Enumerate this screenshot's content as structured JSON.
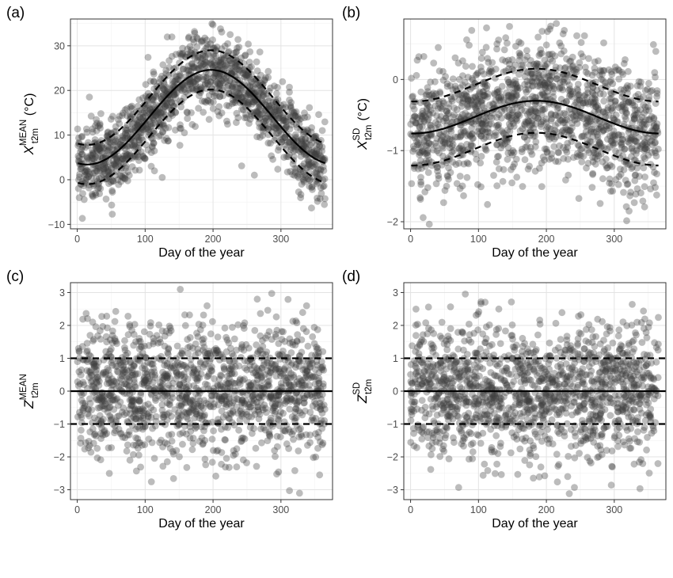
{
  "colors": {
    "points": "#404040",
    "curves": "#000000",
    "grid": "#ebebeb",
    "border": "#333333"
  },
  "chart_data": [
    {
      "tag": "(a)",
      "type": "scatter",
      "xlabel": "Day of the year",
      "ylabel": {
        "main": "X",
        "sup": "MEAN",
        "sub": "t2m",
        "unit": "(°C)"
      },
      "xlim": [
        -10,
        376
      ],
      "ylim": [
        -11,
        36
      ],
      "x_ticks": [
        0,
        100,
        200,
        300
      ],
      "y_ticks": [
        -10,
        0,
        10,
        20,
        30
      ],
      "y_tick_labels": [
        "−10",
        "0",
        "10",
        "20",
        "30"
      ],
      "point_cloud": {
        "n": 1460,
        "opacity": 0.35,
        "pattern": "seasonal",
        "mean": [
          14.0,
          10.6,
          197
        ],
        "sd": [
          4.4,
          0,
          0
        ]
      },
      "lines": [
        {
          "style": "solid",
          "form": "seasonal",
          "mean": 14.0,
          "amp": 10.6,
          "peak_day": 197,
          "offset": 0
        },
        {
          "style": "dashed",
          "form": "seasonal",
          "mean": 14.0,
          "amp": 10.6,
          "peak_day": 197,
          "offset": 4.4
        },
        {
          "style": "dashed",
          "form": "seasonal",
          "mean": 14.0,
          "amp": 10.6,
          "peak_day": 197,
          "offset": -4.4
        }
      ]
    },
    {
      "tag": "(b)",
      "type": "scatter",
      "xlabel": "Day of the year",
      "ylabel": {
        "main": "X",
        "sup": "SD",
        "sub": "t2m",
        "unit": "(°C)"
      },
      "xlim": [
        -10,
        376
      ],
      "ylim": [
        -2.1,
        0.85
      ],
      "x_ticks": [
        0,
        100,
        200,
        300
      ],
      "y_ticks": [
        -2,
        -1,
        0
      ],
      "y_tick_labels": [
        "−2",
        "−1",
        "0"
      ],
      "point_cloud": {
        "n": 1460,
        "opacity": 0.35,
        "pattern": "seasonal",
        "mean": [
          -0.53,
          0.23,
          185
        ],
        "sd": [
          0.45,
          0,
          0
        ]
      },
      "lines": [
        {
          "style": "solid",
          "form": "seasonal",
          "mean": -0.53,
          "amp": 0.23,
          "peak_day": 185,
          "offset": 0
        },
        {
          "style": "dashed",
          "form": "seasonal",
          "mean": -0.53,
          "amp": 0.23,
          "peak_day": 185,
          "offset": 0.45
        },
        {
          "style": "dashed",
          "form": "seasonal",
          "mean": -0.53,
          "amp": 0.23,
          "peak_day": 185,
          "offset": -0.45
        }
      ]
    },
    {
      "tag": "(c)",
      "type": "scatter",
      "xlabel": "Day of the year",
      "ylabel": {
        "main": "Z",
        "sup": "MEAN",
        "sub": "t2m",
        "unit": ""
      },
      "xlim": [
        -10,
        376
      ],
      "ylim": [
        -3.3,
        3.3
      ],
      "x_ticks": [
        0,
        100,
        200,
        300
      ],
      "y_ticks": [
        -3,
        -2,
        -1,
        0,
        1,
        2,
        3
      ],
      "y_tick_labels": [
        "−3",
        "−2",
        "−1",
        "0",
        "1",
        "2",
        "3"
      ],
      "point_cloud": {
        "n": 1460,
        "opacity": 0.35,
        "pattern": "standard-normal",
        "mean": [
          0,
          0,
          0
        ],
        "sd": [
          1,
          0,
          0
        ]
      },
      "lines": [
        {
          "style": "solid",
          "form": "constant",
          "value": 0
        },
        {
          "style": "dashed",
          "form": "constant",
          "value": 1
        },
        {
          "style": "dashed",
          "form": "constant",
          "value": -1
        }
      ]
    },
    {
      "tag": "(d)",
      "type": "scatter",
      "xlabel": "Day of the year",
      "ylabel": {
        "main": "Z",
        "sup": "SD",
        "sub": "t2m",
        "unit": ""
      },
      "xlim": [
        -10,
        376
      ],
      "ylim": [
        -3.3,
        3.3
      ],
      "x_ticks": [
        0,
        100,
        200,
        300
      ],
      "y_ticks": [
        -3,
        -2,
        -1,
        0,
        1,
        2,
        3
      ],
      "y_tick_labels": [
        "−3",
        "−2",
        "−1",
        "0",
        "1",
        "2",
        "3"
      ],
      "point_cloud": {
        "n": 1460,
        "opacity": 0.35,
        "pattern": "standard-normal",
        "mean": [
          0,
          0,
          0
        ],
        "sd": [
          1,
          0,
          0
        ]
      },
      "lines": [
        {
          "style": "solid",
          "form": "constant",
          "value": 0
        },
        {
          "style": "dashed",
          "form": "constant",
          "value": 1
        },
        {
          "style": "dashed",
          "form": "constant",
          "value": -1
        }
      ]
    }
  ]
}
